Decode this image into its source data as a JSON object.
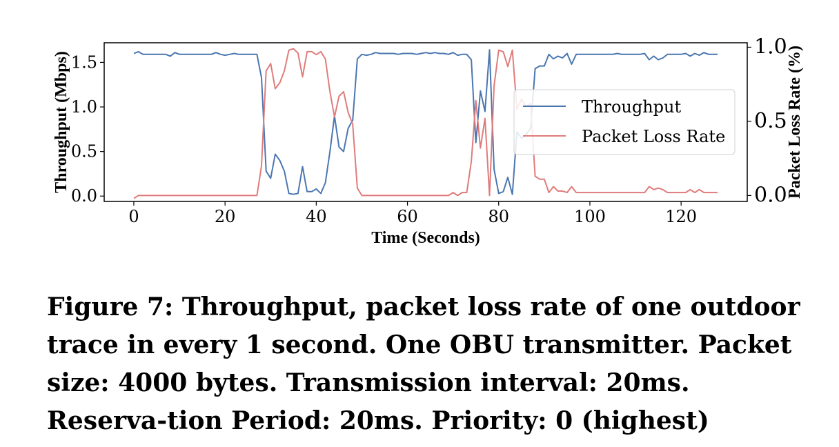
{
  "chart_data": {
    "type": "line",
    "xlabel": "Time (Seconds)",
    "ylabel_left": "Throughput (Mbps)",
    "ylabel_right": "Packet Loss Rate (%)",
    "xlim": [
      -6.5,
      134.5
    ],
    "ylim_left": [
      -0.06,
      1.72
    ],
    "ylim_right": [
      -0.04,
      1.03
    ],
    "x_ticks": [
      0,
      20,
      40,
      60,
      80,
      100,
      120
    ],
    "y_ticks_left": [
      0.0,
      0.5,
      1.0,
      1.5
    ],
    "y_ticks_right": [
      0.0,
      0.5,
      1.0
    ],
    "legend_position": "center-right",
    "grid": false,
    "series": [
      {
        "name": "Throughput",
        "axis": "left",
        "color": "#4a76b0",
        "x": [
          0,
          1,
          2,
          3,
          4,
          5,
          6,
          7,
          8,
          9,
          10,
          11,
          12,
          13,
          14,
          15,
          16,
          17,
          18,
          19,
          20,
          21,
          22,
          23,
          24,
          25,
          26,
          27,
          28,
          29,
          30,
          31,
          32,
          33,
          34,
          35,
          36,
          37,
          38,
          39,
          40,
          41,
          42,
          43,
          44,
          45,
          46,
          47,
          48,
          49,
          50,
          51,
          52,
          53,
          54,
          55,
          56,
          57,
          58,
          59,
          60,
          61,
          62,
          63,
          64,
          65,
          66,
          67,
          68,
          69,
          70,
          71,
          72,
          73,
          74,
          75,
          76,
          77,
          78,
          79,
          80,
          81,
          82,
          83,
          84,
          85,
          86,
          87,
          88,
          89,
          90,
          91,
          92,
          93,
          94,
          95,
          96,
          97,
          98,
          99,
          100,
          101,
          102,
          103,
          104,
          105,
          106,
          107,
          108,
          109,
          110,
          111,
          112,
          113,
          114,
          115,
          116,
          117,
          118,
          119,
          120,
          121,
          122,
          123,
          124,
          125,
          126,
          127,
          128
        ],
        "values": [
          1.6,
          1.62,
          1.59,
          1.59,
          1.59,
          1.59,
          1.59,
          1.59,
          1.57,
          1.61,
          1.59,
          1.59,
          1.59,
          1.59,
          1.59,
          1.59,
          1.59,
          1.59,
          1.61,
          1.59,
          1.58,
          1.59,
          1.6,
          1.59,
          1.59,
          1.59,
          1.59,
          1.59,
          1.33,
          0.28,
          0.2,
          0.47,
          0.4,
          0.28,
          0.03,
          0.02,
          0.03,
          0.33,
          0.05,
          0.05,
          0.08,
          0.03,
          0.15,
          0.5,
          0.9,
          0.55,
          0.5,
          0.76,
          0.85,
          1.54,
          1.59,
          1.58,
          1.59,
          1.61,
          1.6,
          1.6,
          1.6,
          1.6,
          1.59,
          1.6,
          1.6,
          1.6,
          1.59,
          1.6,
          1.61,
          1.6,
          1.61,
          1.6,
          1.6,
          1.59,
          1.61,
          1.58,
          1.59,
          1.59,
          1.53,
          0.6,
          1.18,
          0.95,
          1.64,
          0.3,
          0.03,
          0.05,
          0.21,
          0.02,
          0.72,
          0.65,
          0.69,
          0.76,
          1.43,
          1.46,
          1.46,
          1.59,
          1.54,
          1.57,
          1.55,
          1.6,
          1.48,
          1.59,
          1.59,
          1.59,
          1.59,
          1.59,
          1.59,
          1.59,
          1.59,
          1.59,
          1.6,
          1.59,
          1.59,
          1.59,
          1.59,
          1.59,
          1.6,
          1.53,
          1.57,
          1.53,
          1.55,
          1.59,
          1.59,
          1.59,
          1.59,
          1.6,
          1.57,
          1.6,
          1.58,
          1.61,
          1.59,
          1.59,
          1.59
        ]
      },
      {
        "name": "Packet Loss Rate",
        "axis": "right",
        "color": "#e07b7b",
        "x": [
          0,
          1,
          2,
          3,
          4,
          5,
          6,
          7,
          8,
          9,
          10,
          11,
          12,
          13,
          14,
          15,
          16,
          17,
          18,
          19,
          20,
          21,
          22,
          23,
          24,
          25,
          26,
          27,
          28,
          29,
          30,
          31,
          32,
          33,
          34,
          35,
          36,
          37,
          38,
          39,
          40,
          41,
          42,
          43,
          44,
          45,
          46,
          47,
          48,
          49,
          50,
          51,
          52,
          53,
          54,
          55,
          56,
          57,
          58,
          59,
          60,
          61,
          62,
          63,
          64,
          65,
          66,
          67,
          68,
          69,
          70,
          71,
          72,
          73,
          74,
          75,
          76,
          77,
          78,
          79,
          80,
          81,
          82,
          83,
          84,
          85,
          86,
          87,
          88,
          89,
          90,
          91,
          92,
          93,
          94,
          95,
          96,
          97,
          98,
          99,
          100,
          101,
          102,
          103,
          104,
          105,
          106,
          107,
          108,
          109,
          110,
          111,
          112,
          113,
          114,
          115,
          116,
          117,
          118,
          119,
          120,
          121,
          122,
          123,
          124,
          125,
          126,
          127,
          128
        ],
        "values": [
          -0.02,
          0,
          0,
          0,
          0,
          0,
          0,
          0,
          0,
          0,
          0,
          0,
          0,
          0,
          0,
          0,
          0,
          0,
          0,
          0,
          0,
          0,
          0,
          0,
          0,
          0,
          0,
          0,
          0.2,
          0.84,
          0.89,
          0.72,
          0.76,
          0.84,
          0.98,
          0.99,
          0.96,
          0.8,
          0.97,
          0.97,
          0.95,
          0.97,
          0.92,
          0.7,
          0.53,
          0.67,
          0.7,
          0.56,
          0.48,
          0.05,
          0,
          0,
          0,
          0,
          0,
          0,
          0,
          0,
          0,
          0,
          0,
          0,
          0,
          0,
          0,
          0,
          0,
          0,
          0,
          0,
          0.02,
          0,
          0.02,
          0.02,
          0.23,
          0.64,
          0.32,
          0.52,
          0,
          0.74,
          0.98,
          0.97,
          0.87,
          0.98,
          0.58,
          0.65,
          0.6,
          0.62,
          0.13,
          0.11,
          0.11,
          0.02,
          0.06,
          0.03,
          0.03,
          0.02,
          0.06,
          0.02,
          0.02,
          0.02,
          0.02,
          0.02,
          0.02,
          0.02,
          0.02,
          0.02,
          0.02,
          0.02,
          0.02,
          0.02,
          0.02,
          0.02,
          0.02,
          0.06,
          0.04,
          0.05,
          0.04,
          0.02,
          0.02,
          0.02,
          0.02,
          0.02,
          0.04,
          0.02,
          0.04,
          0.02,
          0.02,
          0.02,
          0.02
        ]
      }
    ]
  },
  "caption": "Figure 7: Throughput, packet loss rate of one outdoor trace in every 1 second. One OBU transmitter. Packet size: 4000 bytes. Transmission interval: 20ms. Reserva-tion Period: 20ms. Priority: 0 (highest)"
}
